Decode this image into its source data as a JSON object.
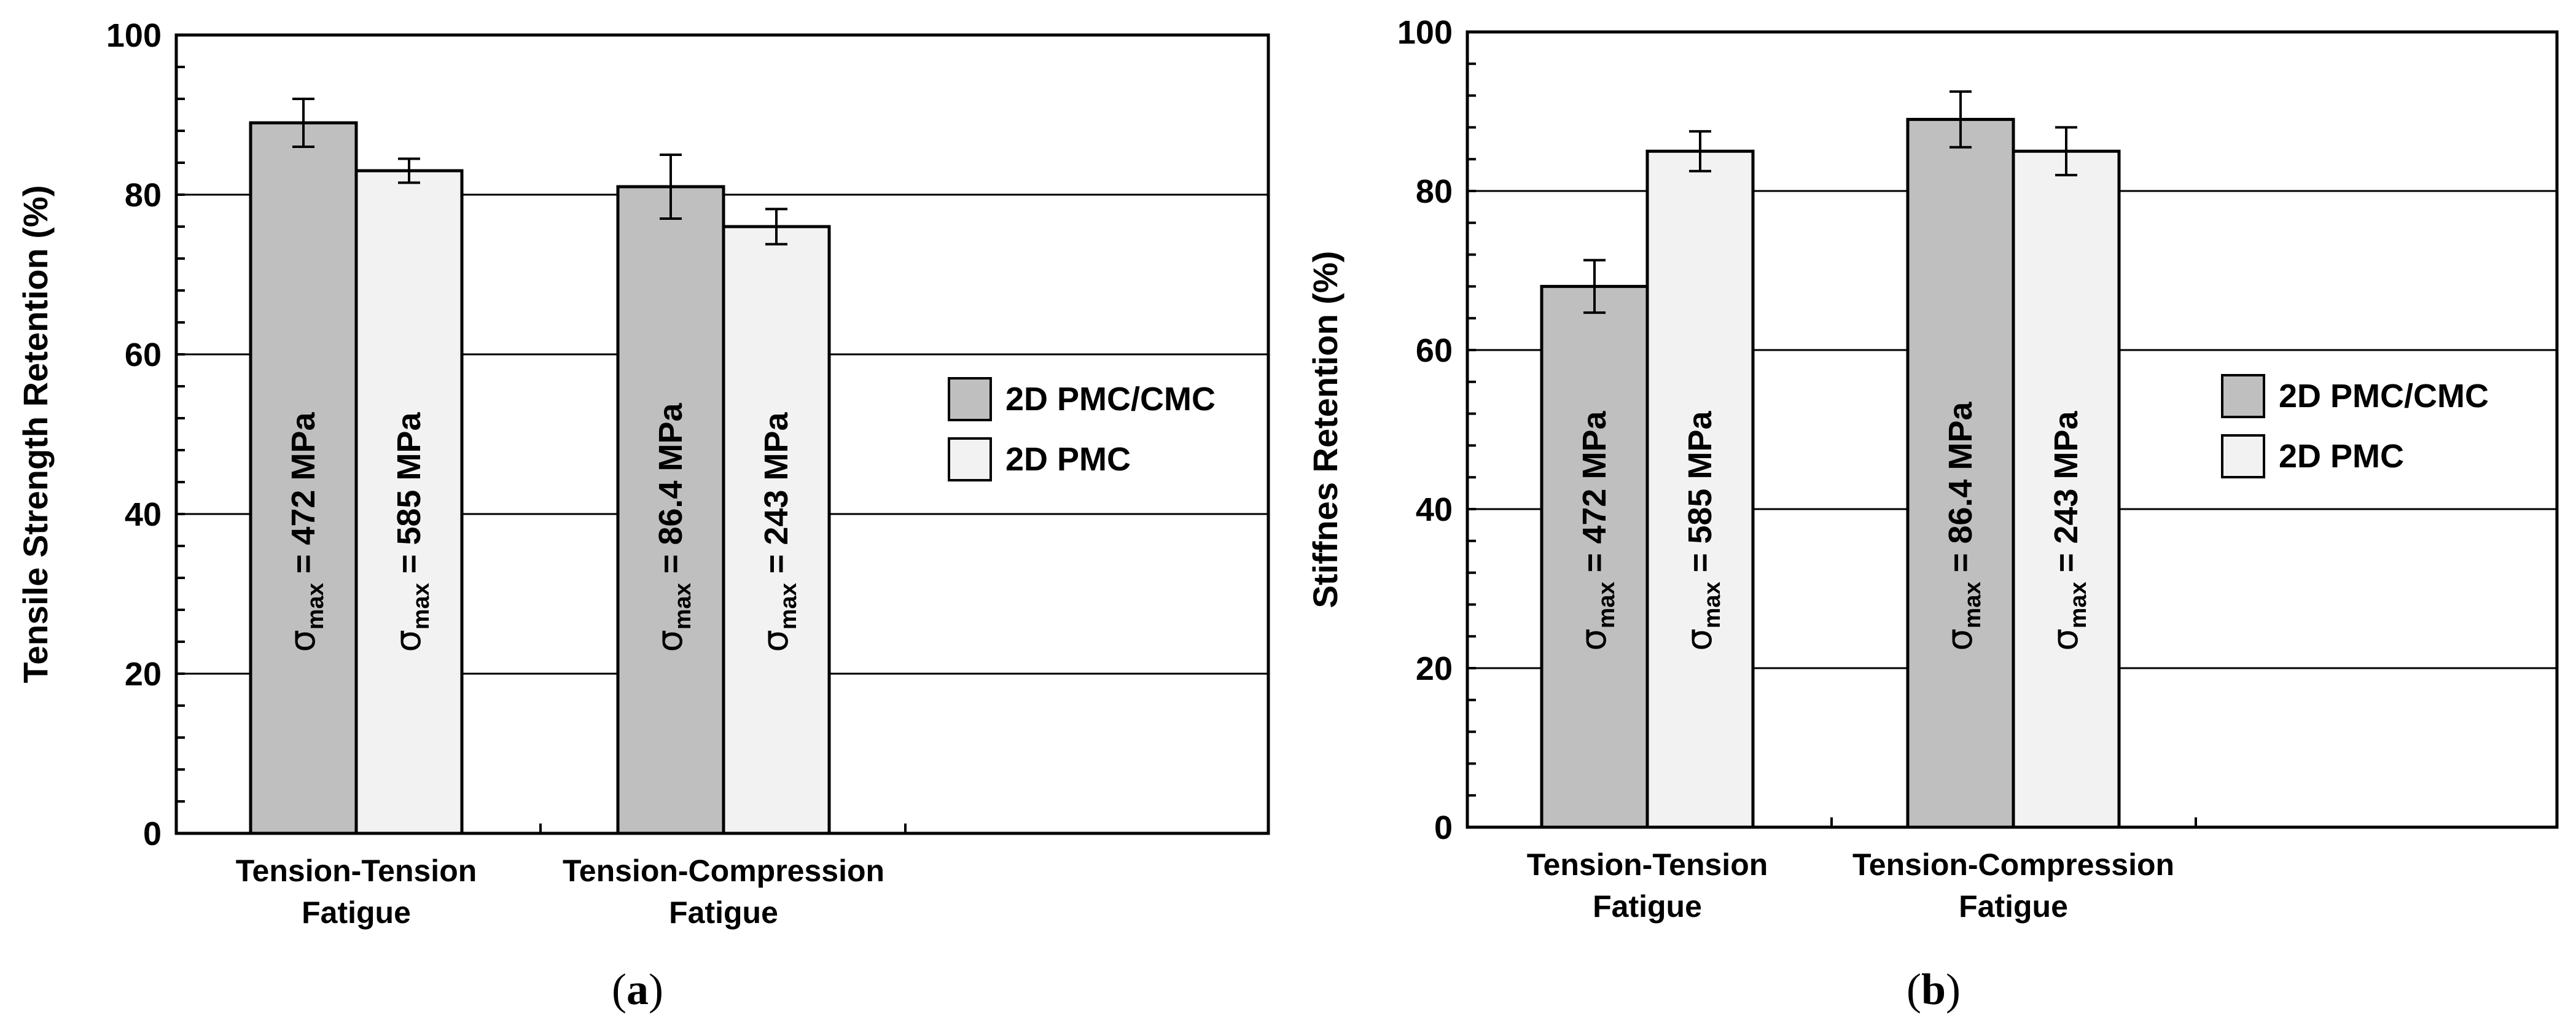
{
  "colors": {
    "series1": "#bfbfbf",
    "series2": "#f2f2f2",
    "grid": "#000000",
    "text": "#000000"
  },
  "chart_data": [
    {
      "type": "bar",
      "panel": "(a)",
      "caption_letter": "a",
      "ylabel": "Tensile Strength Retention (%)",
      "ylim": [
        0,
        100
      ],
      "yticks": [
        "0",
        "20",
        "40",
        "60",
        "80",
        "100"
      ],
      "grid": true,
      "categories": [
        [
          "Tension-Tension",
          "Fatigue"
        ],
        [
          "Tension-Compression",
          "Fatigue"
        ]
      ],
      "series": [
        {
          "name": "2D PMC/CMC",
          "values": [
            89,
            81
          ],
          "errors": [
            3,
            4
          ],
          "bar_labels": [
            {
              "sigma": "σ",
              "sub": "max",
              "text": " = 472 MPa"
            },
            {
              "sigma": "σ",
              "sub": "max",
              "text": " = 86.4 MPa"
            }
          ]
        },
        {
          "name": "2D PMC",
          "values": [
            83,
            76
          ],
          "errors": [
            1.5,
            2.2
          ],
          "bar_labels": [
            {
              "sigma": "σ",
              "sub": "max",
              "text": " = 585 MPa"
            },
            {
              "sigma": "σ",
              "sub": "max",
              "text": " = 243 MPa"
            }
          ]
        }
      ],
      "legend_position": "right"
    },
    {
      "type": "bar",
      "panel": "(b)",
      "caption_letter": "b",
      "ylabel": "Stiffnes Retention (%)",
      "ylim": [
        0,
        100
      ],
      "yticks": [
        "0",
        "20",
        "40",
        "60",
        "80",
        "100"
      ],
      "grid": true,
      "categories": [
        [
          "Tension-Tension",
          "Fatigue"
        ],
        [
          "Tension-Compression",
          "Fatigue"
        ]
      ],
      "series": [
        {
          "name": "2D PMC/CMC",
          "values": [
            68,
            89
          ],
          "errors": [
            3.3,
            3.5
          ],
          "bar_labels": [
            {
              "sigma": "σ",
              "sub": "max",
              "text": " = 472 MPa"
            },
            {
              "sigma": "σ",
              "sub": "max",
              "text": " = 86.4 MPa"
            }
          ]
        },
        {
          "name": "2D PMC",
          "values": [
            85,
            85
          ],
          "errors": [
            2.5,
            3
          ],
          "bar_labels": [
            {
              "sigma": "σ",
              "sub": "max",
              "text": " = 585 MPa"
            },
            {
              "sigma": "σ",
              "sub": "max",
              "text": " = 243 MPa"
            }
          ]
        }
      ],
      "legend_position": "right"
    }
  ]
}
